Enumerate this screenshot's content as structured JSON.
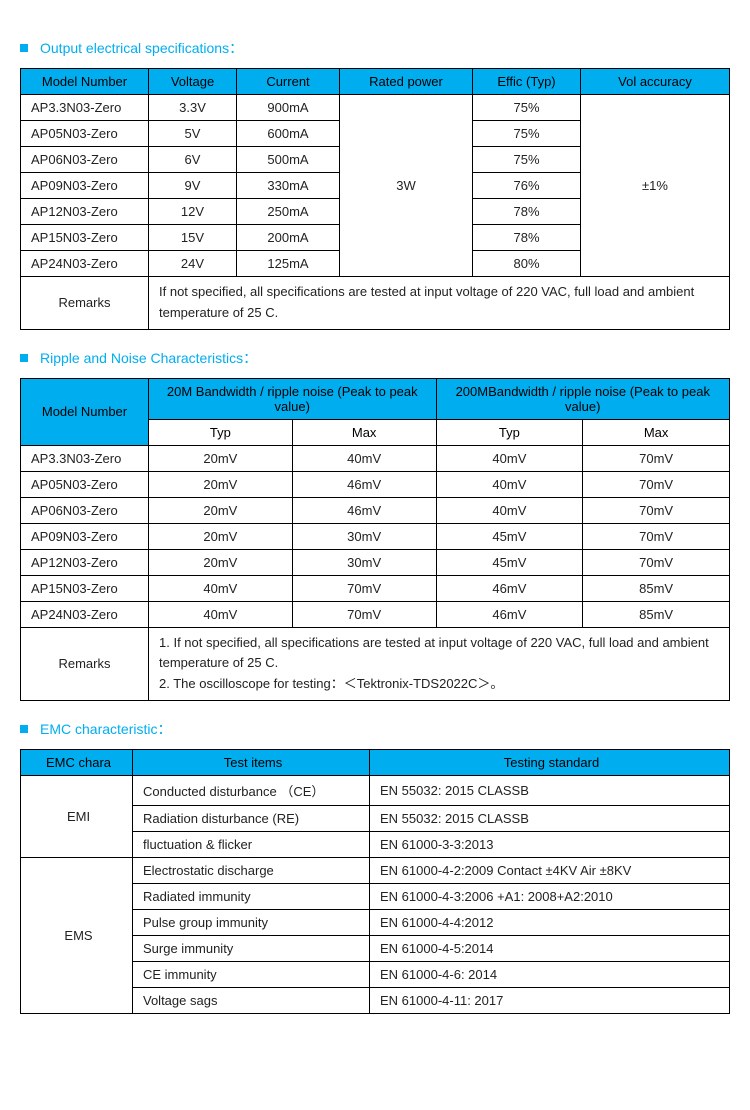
{
  "colors": {
    "accent": "#00aef0",
    "border": "#000000",
    "text": "#222222",
    "background": "#ffffff"
  },
  "sections": {
    "output": {
      "title": "Output electrical specifications：",
      "columns": [
        "Model Number",
        "Voltage",
        "Current",
        "Rated power",
        "Effic (Typ)",
        "Vol accuracy"
      ],
      "rated_power": "3W",
      "vol_accuracy": "±1%",
      "rows": [
        {
          "model": "AP3.3N03-Zero",
          "voltage": "3.3V",
          "current": "900mA",
          "effic": "75%"
        },
        {
          "model": "AP05N03-Zero",
          "voltage": "5V",
          "current": "600mA",
          "effic": "75%"
        },
        {
          "model": "AP06N03-Zero",
          "voltage": "6V",
          "current": "500mA",
          "effic": "75%"
        },
        {
          "model": "AP09N03-Zero",
          "voltage": "9V",
          "current": "330mA",
          "effic": "76%"
        },
        {
          "model": "AP12N03-Zero",
          "voltage": "12V",
          "current": "250mA",
          "effic": "78%"
        },
        {
          "model": "AP15N03-Zero",
          "voltage": "15V",
          "current": "200mA",
          "effic": "78%"
        },
        {
          "model": "AP24N03-Zero",
          "voltage": "24V",
          "current": "125mA",
          "effic": "80%"
        }
      ],
      "remarks_label": "Remarks",
      "remarks": "If not specified, all specifications are tested at input voltage of 220 VAC, full load and ambient temperature of 25 C."
    },
    "ripple": {
      "title": "Ripple and Noise Characteristics：",
      "col_model": "Model Number",
      "col_20m": "20M Bandwidth / ripple noise (Peak to peak value)",
      "col_200m": "200MBandwidth / ripple noise (Peak to peak value)",
      "sub_typ": "Typ",
      "sub_max": "Max",
      "rows": [
        {
          "model": "AP3.3N03-Zero",
          "typ20": "20mV",
          "max20": "40mV",
          "typ200": "40mV",
          "max200": "70mV"
        },
        {
          "model": "AP05N03-Zero",
          "typ20": "20mV",
          "max20": "46mV",
          "typ200": "40mV",
          "max200": "70mV"
        },
        {
          "model": "AP06N03-Zero",
          "typ20": "20mV",
          "max20": "46mV",
          "typ200": "40mV",
          "max200": "70mV"
        },
        {
          "model": "AP09N03-Zero",
          "typ20": "20mV",
          "max20": "30mV",
          "typ200": "45mV",
          "max200": "70mV"
        },
        {
          "model": "AP12N03-Zero",
          "typ20": "20mV",
          "max20": "30mV",
          "typ200": "45mV",
          "max200": "70mV"
        },
        {
          "model": "AP15N03-Zero",
          "typ20": "40mV",
          "max20": "70mV",
          "typ200": "46mV",
          "max200": "85mV"
        },
        {
          "model": "AP24N03-Zero",
          "typ20": "40mV",
          "max20": "70mV",
          "typ200": "46mV",
          "max200": "85mV"
        }
      ],
      "remarks_label": "Remarks",
      "remarks_1": "1.   If not specified, all specifications are tested at input voltage of 220 VAC, full load and ambient temperature of 25 C.",
      "remarks_2": "2.   The oscilloscope for testing：＜Tektronix-TDS2022C＞。"
    },
    "emc": {
      "title": "EMC characteristic：",
      "columns": [
        "EMC chara",
        "Test items",
        "Testing standard"
      ],
      "emi_label": "EMI",
      "ems_label": "EMS",
      "emi_rows": [
        {
          "item": "Conducted disturbance （CE）",
          "std": "EN 55032: 2015      CLASSB"
        },
        {
          "item": "Radiation disturbance (RE)",
          "std": "EN 55032: 2015      CLASSB"
        },
        {
          "item": "fluctuation & flicker",
          "std": "EN 61000-3-3:2013"
        }
      ],
      "ems_rows": [
        {
          "item": "Electrostatic discharge",
          "std": "EN 61000-4-2:2009   Contact ±4KV   Air ±8KV"
        },
        {
          "item": "Radiated immunity",
          "std": "EN 61000-4-3:2006 +A1: 2008+A2:2010"
        },
        {
          "item": "Pulse group immunity",
          "std": "EN 61000-4-4:2012"
        },
        {
          "item": "Surge immunity",
          "std": "EN 61000-4-5:2014"
        },
        {
          "item": "CE immunity",
          "std": "EN 61000-4-6: 2014"
        },
        {
          "item": "Voltage sags",
          "std": "EN 61000-4-11: 2017"
        }
      ]
    }
  }
}
